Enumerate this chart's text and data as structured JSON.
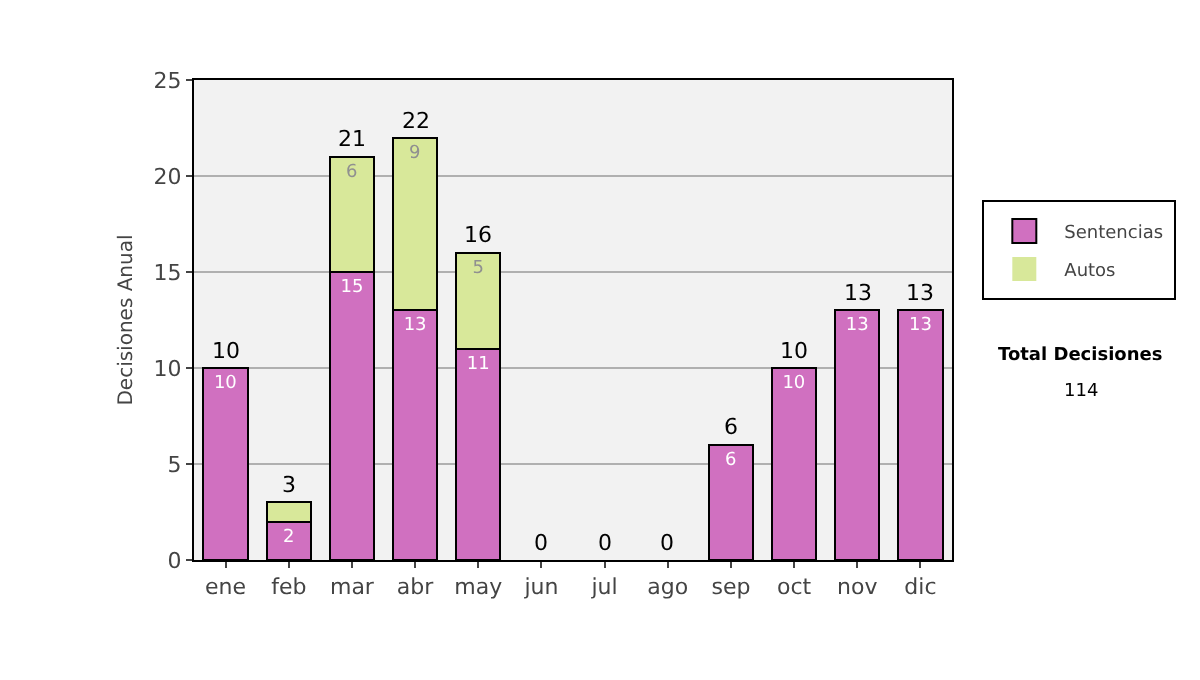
{
  "chart_data": {
    "type": "bar",
    "stacked": true,
    "categories": [
      "ene",
      "feb",
      "mar",
      "abr",
      "may",
      "jun",
      "jul",
      "ago",
      "sep",
      "oct",
      "nov",
      "dic"
    ],
    "ylabel": "Decisiones Anual",
    "series": [
      {
        "name": "Sentencias",
        "color": "#d070c0",
        "values": [
          10,
          2,
          15,
          13,
          11,
          0,
          0,
          0,
          6,
          10,
          13,
          13
        ],
        "value_labels": [
          "10",
          "2",
          "15",
          "13",
          "11",
          null,
          null,
          null,
          "6",
          "10",
          "13",
          "13"
        ]
      },
      {
        "name": "Autos",
        "color": "#d8e89a",
        "values": [
          0,
          1,
          6,
          9,
          5,
          0,
          0,
          0,
          0,
          0,
          0,
          0
        ],
        "value_labels": [
          null,
          null,
          "6",
          "9",
          "5",
          null,
          null,
          null,
          null,
          null,
          null,
          null
        ]
      }
    ],
    "totals": [
      "10",
      "3",
      "21",
      "22",
      "16",
      "0",
      "0",
      "0",
      "6",
      "10",
      "13",
      "13"
    ],
    "ylim": [
      0,
      25
    ],
    "yticks": [
      0,
      5,
      10,
      15,
      20,
      25
    ],
    "grid": "y",
    "legend": "right",
    "annotations": [
      "Total Decisiones",
      "114"
    ]
  }
}
